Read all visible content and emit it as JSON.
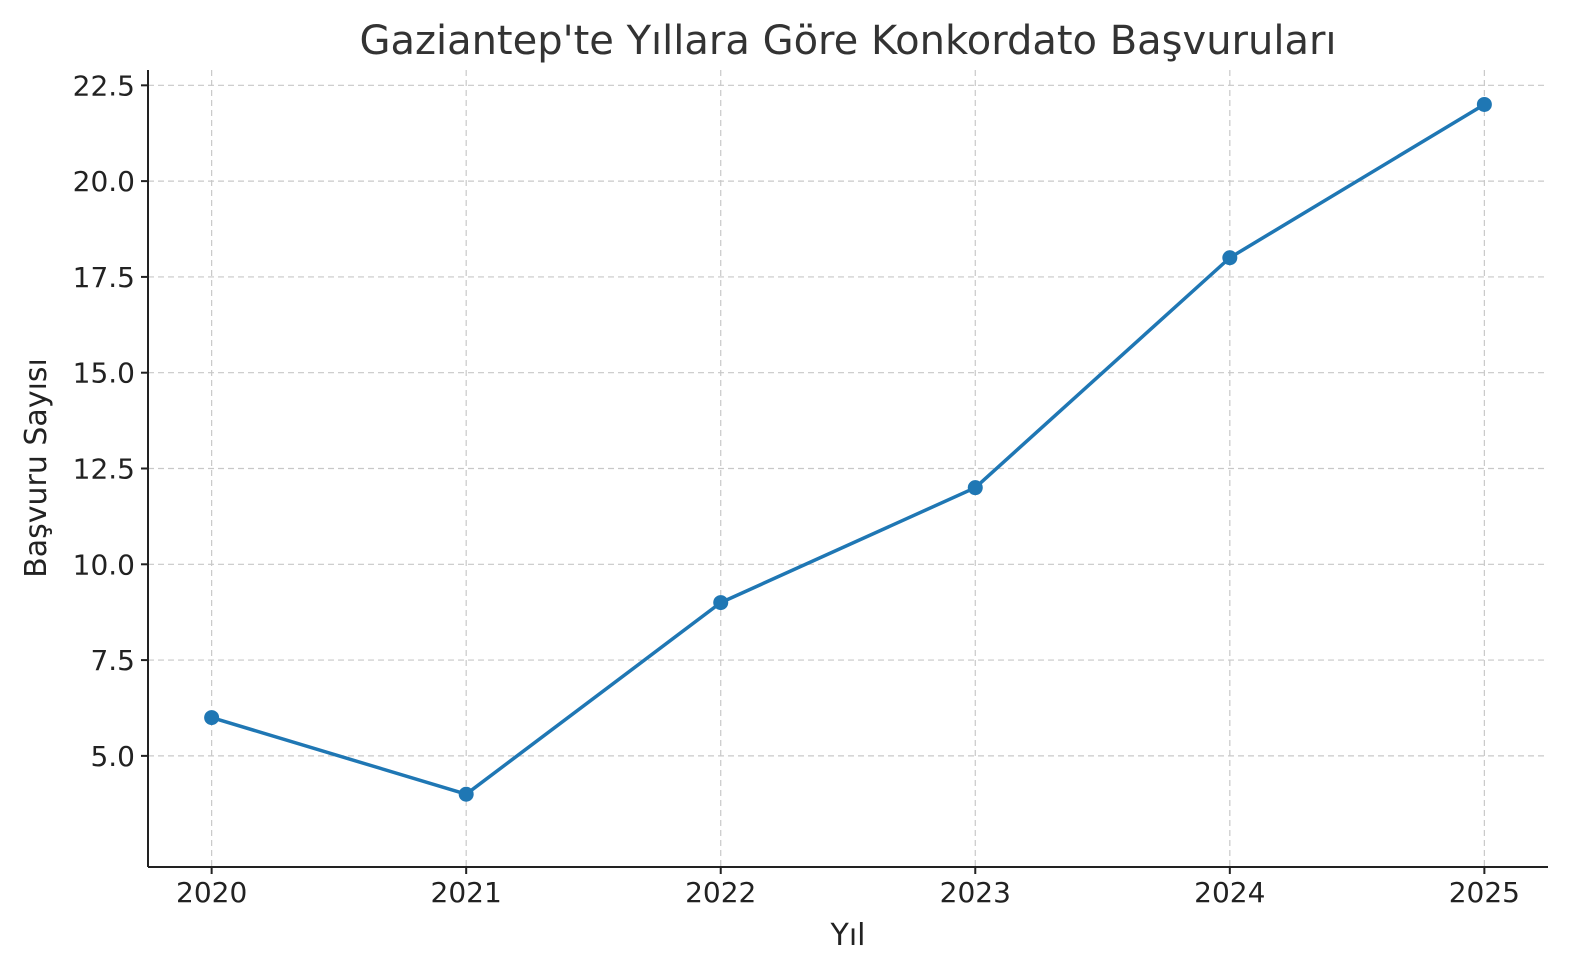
{
  "chart_data": {
    "type": "line",
    "title": "Gaziantep'te Yıllara Göre Konkordato Başvuruları",
    "xlabel": "Yıl",
    "ylabel": "Başvuru Sayısı",
    "x": [
      "2020",
      "2021",
      "2022",
      "2023",
      "2024",
      "2025"
    ],
    "series": [
      {
        "values": [
          6,
          4,
          9,
          12,
          18,
          22
        ],
        "color": "#1f77b4",
        "marker": "circle"
      }
    ],
    "xlim": [
      -0.25,
      5.25
    ],
    "ylim": [
      2.1,
      22.9
    ],
    "yticks": [
      5.0,
      7.5,
      10.0,
      12.5,
      15.0,
      17.5,
      20.0,
      22.5
    ],
    "ytick_labels": [
      "5.0",
      "7.5",
      "10.0",
      "12.5",
      "15.0",
      "17.5",
      "20.0",
      "22.5"
    ],
    "grid": true,
    "legend": "none"
  }
}
